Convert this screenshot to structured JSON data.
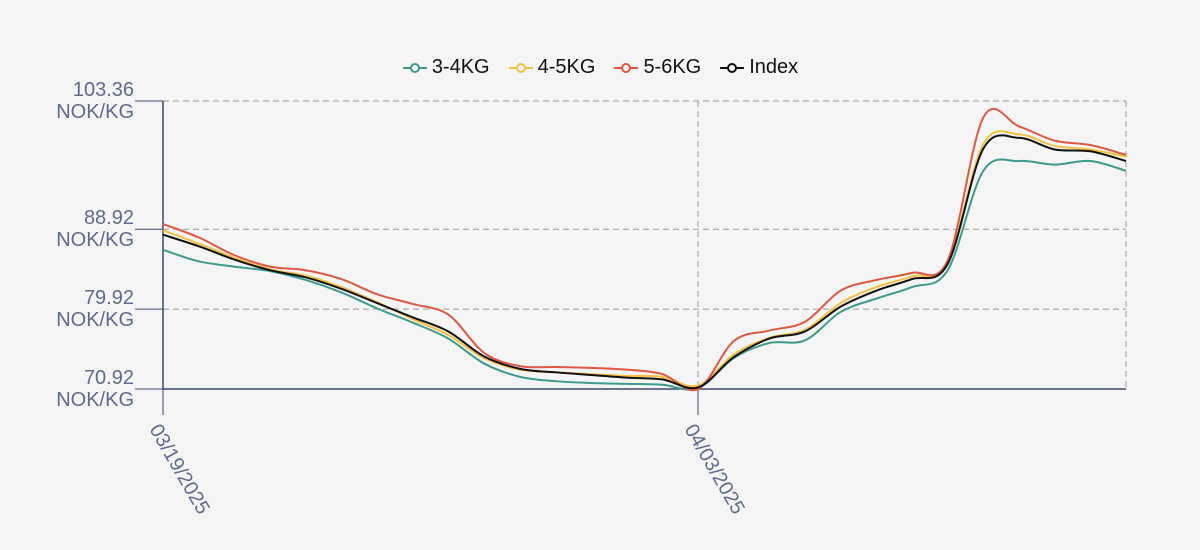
{
  "chart_data": {
    "type": "line",
    "x": [
      "03/19/2025",
      "03/20/2025",
      "03/21/2025",
      "03/22/2025",
      "03/23/2025",
      "03/24/2025",
      "03/25/2025",
      "03/26/2025",
      "03/27/2025",
      "03/28/2025",
      "03/29/2025",
      "03/30/2025",
      "03/31/2025",
      "04/01/2025",
      "04/02/2025",
      "04/03/2025",
      "04/04/2025",
      "04/05/2025",
      "04/06/2025",
      "04/07/2025",
      "04/08/2025",
      "04/09/2025",
      "04/10/2025",
      "04/11/2025",
      "04/12/2025",
      "04/13/2025",
      "04/14/2025",
      "04/15/2025"
    ],
    "xlim": [
      "03/19/2025",
      "04/15/2025"
    ],
    "xticks": [
      "03/19/2025",
      "04/03/2025"
    ],
    "ylim": [
      70.92,
      103.36
    ],
    "yticks": [
      {
        "value": 70.92,
        "label": "70.92 NOK/KG"
      },
      {
        "value": 79.92,
        "label": "79.92 NOK/KG"
      },
      {
        "value": 88.92,
        "label": "88.92 NOK/KG"
      },
      {
        "value": 103.36,
        "label": "103.36 NOK/KG"
      }
    ],
    "grid": true,
    "series": [
      {
        "name": "3-4KG",
        "color": "#3e9a8b",
        "values": [
          86.6,
          85.3,
          84.7,
          84.2,
          83.2,
          81.8,
          80.0,
          78.4,
          76.6,
          73.8,
          72.3,
          71.8,
          71.6,
          71.5,
          71.4,
          71.0,
          74.4,
          76.1,
          76.4,
          79.6,
          81.1,
          82.4,
          84.3,
          95.5,
          96.6,
          96.2,
          96.6,
          95.5
        ]
      },
      {
        "name": "4-5KG",
        "color": "#f4c044",
        "values": [
          88.8,
          87.3,
          85.7,
          84.4,
          83.7,
          82.4,
          80.7,
          78.8,
          77.0,
          74.4,
          73.1,
          72.8,
          72.6,
          72.4,
          72.3,
          71.3,
          74.8,
          76.7,
          77.6,
          80.6,
          82.4,
          83.6,
          85.2,
          98.5,
          99.6,
          98.3,
          97.9,
          97.1
        ]
      },
      {
        "name": "5-6KG",
        "color": "#e05743",
        "values": [
          89.5,
          88.0,
          86.0,
          84.7,
          84.3,
          83.3,
          81.6,
          80.5,
          79.3,
          75.0,
          73.5,
          73.4,
          73.3,
          73.1,
          72.6,
          70.9,
          76.3,
          77.5,
          78.5,
          82.0,
          83.2,
          84.0,
          85.4,
          101.5,
          100.5,
          98.9,
          98.4,
          97.3
        ]
      },
      {
        "name": "Index",
        "color": "#111111",
        "values": [
          88.3,
          87.0,
          85.5,
          84.3,
          83.5,
          82.2,
          80.6,
          79.0,
          77.4,
          74.6,
          73.2,
          72.8,
          72.5,
          72.2,
          72.0,
          71.1,
          74.5,
          76.6,
          77.4,
          80.2,
          82.0,
          83.3,
          85.0,
          98.0,
          99.2,
          97.9,
          97.7,
          96.6
        ]
      }
    ]
  }
}
